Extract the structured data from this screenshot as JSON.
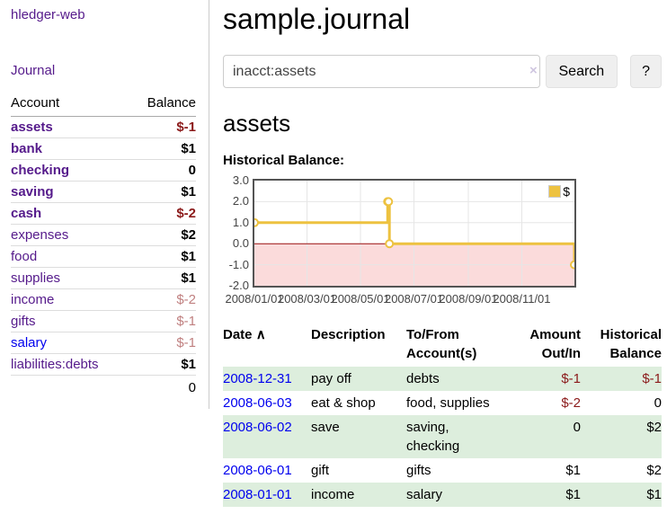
{
  "app": {
    "brand": "hledger-web",
    "nav_journal": "Journal"
  },
  "colors": {
    "link_purple": "#551a8b",
    "link_blue": "#0000ee",
    "negative_strong": "#8b1a1a",
    "negative_soft": "#c08080",
    "row_stripe_green": "#ddeedd",
    "series_yellow": "#edc240"
  },
  "sidebar": {
    "accounts_header": {
      "account": "Account",
      "balance": "Balance"
    },
    "accounts": [
      {
        "label": "assets",
        "level": 1,
        "bold": true,
        "link_color": "purple",
        "balance": "$-1",
        "balance_class": "neg-strong"
      },
      {
        "label": "bank",
        "level": 2,
        "bold": true,
        "link_color": "purple",
        "balance": "$1",
        "balance_class": "pos"
      },
      {
        "label": "checking",
        "level": 3,
        "bold": true,
        "link_color": "purple",
        "balance": "0",
        "balance_class": "pos"
      },
      {
        "label": "saving",
        "level": 3,
        "bold": true,
        "link_color": "purple",
        "balance": "$1",
        "balance_class": "pos"
      },
      {
        "label": "cash",
        "level": 2,
        "bold": true,
        "link_color": "purple",
        "balance": "$-2",
        "balance_class": "neg-strong"
      },
      {
        "label": "expenses",
        "level": 1,
        "bold": false,
        "link_color": "purple",
        "balance": "$2",
        "balance_class": "pos"
      },
      {
        "label": "food",
        "level": 2,
        "bold": false,
        "link_color": "purple",
        "balance": "$1",
        "balance_class": "pos"
      },
      {
        "label": "supplies",
        "level": 2,
        "bold": false,
        "link_color": "purple",
        "balance": "$1",
        "balance_class": "pos"
      },
      {
        "label": "income",
        "level": 1,
        "bold": false,
        "link_color": "purple",
        "balance": "$-2",
        "balance_class": "neg-soft"
      },
      {
        "label": "gifts",
        "level": 2,
        "bold": false,
        "link_color": "purple",
        "balance": "$-1",
        "balance_class": "neg-soft"
      },
      {
        "label": "salary",
        "level": 2,
        "bold": false,
        "link_color": "blue",
        "balance": "$-1",
        "balance_class": "neg-soft"
      },
      {
        "label": "liabilities:debts",
        "level": 1,
        "bold": false,
        "link_color": "purple",
        "balance": "$1",
        "balance_class": "pos"
      }
    ],
    "total": "0"
  },
  "header": {
    "journal_title": "sample.journal"
  },
  "search": {
    "value": "inacct:assets",
    "clear_label": "×",
    "search_button": "Search",
    "help_button": "?"
  },
  "account_page": {
    "title": "assets",
    "chart_label": "Historical Balance:"
  },
  "chart_data": {
    "type": "line",
    "title": "Historical Balance:",
    "steps": true,
    "series": [
      {
        "name": "$",
        "color": "#edc240",
        "points": [
          {
            "date": "2008-01-01",
            "value": 1
          },
          {
            "date": "2008-06-01",
            "value": 2
          },
          {
            "date": "2008-06-02",
            "value": 2
          },
          {
            "date": "2008-06-03",
            "value": 0
          },
          {
            "date": "2008-12-31",
            "value": -1
          }
        ]
      }
    ],
    "x_range": [
      "2008-01-01",
      "2008-12-31"
    ],
    "ylim": [
      -2,
      3
    ],
    "y_ticks": [
      "3.0",
      "2.0",
      "1.0",
      "0.0",
      "-1.0",
      "-2.0"
    ],
    "x_ticks": [
      "2008/01/01",
      "2008/03/01",
      "2008/05/01",
      "2008/07/01",
      "2008/09/01",
      "2008/11/01"
    ],
    "grid": true,
    "legend": "$",
    "legend_position": "top-right",
    "negative_region_color": "#fbdbdb",
    "zero_line_color": "#991111",
    "gridline_color": "#e6e6e6"
  },
  "register": {
    "columns": [
      "Date",
      "Description",
      "To/From Account(s)",
      "Amount Out/In",
      "Historical Balance"
    ],
    "sort_indicator": "∧",
    "rows": [
      {
        "date": "2008-12-31",
        "description": "pay off",
        "accounts": "debts",
        "amount": "$-1",
        "amount_negative": true,
        "balance": "$-1",
        "balance_negative": true
      },
      {
        "date": "2008-06-03",
        "description": "eat & shop",
        "accounts": "food, supplies",
        "amount": "$-2",
        "amount_negative": true,
        "balance": "0",
        "balance_negative": false
      },
      {
        "date": "2008-06-02",
        "description": "save",
        "accounts": "saving, checking",
        "amount": "0",
        "amount_negative": false,
        "balance": "$2",
        "balance_negative": false
      },
      {
        "date": "2008-06-01",
        "description": "gift",
        "accounts": "gifts",
        "amount": "$1",
        "amount_negative": false,
        "balance": "$2",
        "balance_negative": false
      },
      {
        "date": "2008-01-01",
        "description": "income",
        "accounts": "salary",
        "amount": "$1",
        "amount_negative": false,
        "balance": "$1",
        "balance_negative": false
      }
    ]
  }
}
